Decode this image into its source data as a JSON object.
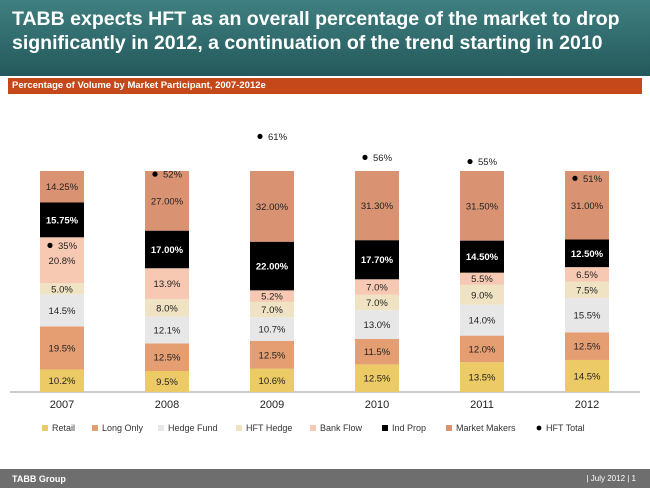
{
  "header": {
    "title": "TABB expects HFT as an overall percentage of the market to drop significantly in 2012, a continuation of the trend starting in 2010"
  },
  "subheader": {
    "label": "Percentage of Volume by Market Participant, 2007-2012e"
  },
  "footer": {
    "company": "TABB Group",
    "date_page": "|  July 2012  |  1"
  },
  "colors": {
    "Retail": "#ecca66",
    "Long Only": "#e49e72",
    "Hedge Fund": "#e7e7e7",
    "HFT Hedge": "#efe3c3",
    "Bank Flow": "#f7c9b3",
    "Ind Prop": "#000000",
    "Market Makers": "#d99373",
    "HFT Total": "#000000"
  },
  "chart_data": {
    "type": "bar",
    "stacked": true,
    "categories": [
      "2007",
      "2008",
      "2009",
      "2010",
      "2011",
      "2012"
    ],
    "series": [
      {
        "name": "Retail",
        "values": [
          10.2,
          9.5,
          10.6,
          12.5,
          13.5,
          14.5
        ],
        "labels": [
          "10.2%",
          "9.5%",
          "10.6%",
          "12.5%",
          "13.5%",
          "14.5%"
        ]
      },
      {
        "name": "Long Only",
        "values": [
          19.5,
          12.5,
          12.5,
          11.5,
          12.0,
          12.5
        ],
        "labels": [
          "19.5%",
          "12.5%",
          "12.5%",
          "11.5%",
          "12.0%",
          "12.5%"
        ]
      },
      {
        "name": "Hedge Fund",
        "values": [
          14.5,
          12.1,
          10.7,
          13.0,
          14.0,
          15.5
        ],
        "labels": [
          "14.5%",
          "12.1%",
          "10.7%",
          "13.0%",
          "14.0%",
          "15.5%"
        ]
      },
      {
        "name": "HFT Hedge",
        "values": [
          5.0,
          8.0,
          7.0,
          7.0,
          9.0,
          7.5
        ],
        "labels": [
          "5.0%",
          "8.0%",
          "7.0%",
          "7.0%",
          "9.0%",
          "7.5%"
        ]
      },
      {
        "name": "Bank Flow",
        "values": [
          20.8,
          13.9,
          5.2,
          7.0,
          5.5,
          6.5
        ],
        "labels": [
          "20.8%",
          "13.9%",
          "5.2%",
          "7.0%",
          "5.5%",
          "6.5%"
        ]
      },
      {
        "name": "Ind Prop",
        "values": [
          15.75,
          17.0,
          22.0,
          17.7,
          14.5,
          12.5
        ],
        "labels": [
          "15.75%",
          "17.00%",
          "22.00%",
          "17.70%",
          "14.50%",
          "12.50%"
        ]
      },
      {
        "name": "Market Makers",
        "values": [
          14.25,
          27.0,
          32.0,
          31.3,
          31.5,
          31.0
        ],
        "labels": [
          "14.25%",
          "27.00%",
          "32.00%",
          "31.30%",
          "31.50%",
          "31.00%"
        ]
      }
    ],
    "hft_total": {
      "name": "HFT Total",
      "values": [
        35,
        52,
        61,
        56,
        55,
        51
      ],
      "labels": [
        "35%",
        "52%",
        "61%",
        "56%",
        "55%",
        "51%"
      ]
    },
    "ylim": [
      0,
      120
    ],
    "grid": false,
    "legend_position": "bottom"
  }
}
